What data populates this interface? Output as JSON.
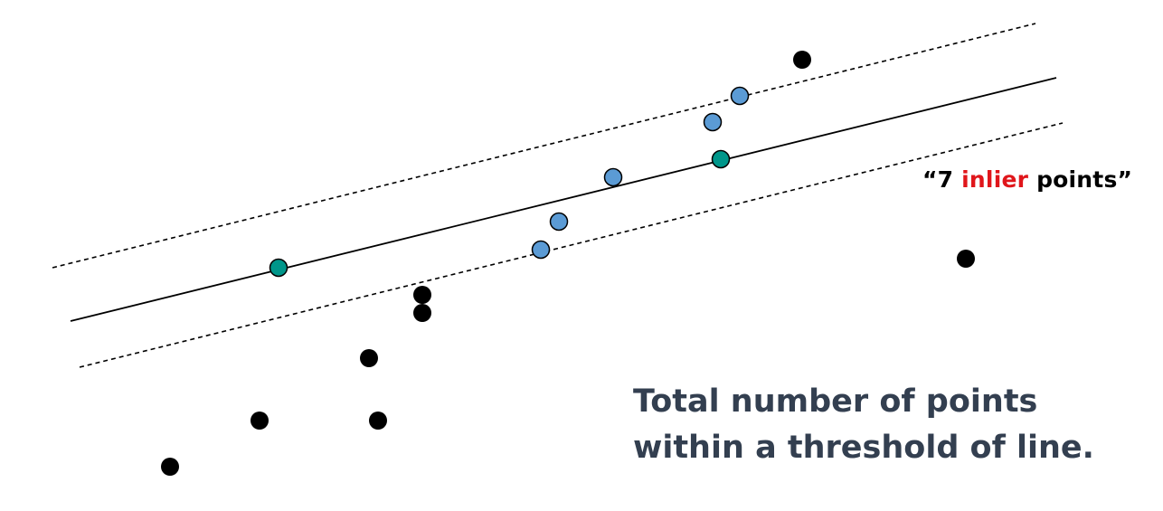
{
  "label": {
    "open_quote": "“",
    "count": "7",
    "highlight": "inlier",
    "rest": "points",
    "close_quote": "”"
  },
  "caption": {
    "line1": "Total number of points",
    "line2": "within a threshold of line."
  },
  "colors": {
    "outlier": "#000000",
    "inlier": "#5b9bd5",
    "sample": "#00968a",
    "highlight_text": "#e0161b",
    "caption_text": "#333f50"
  }
}
